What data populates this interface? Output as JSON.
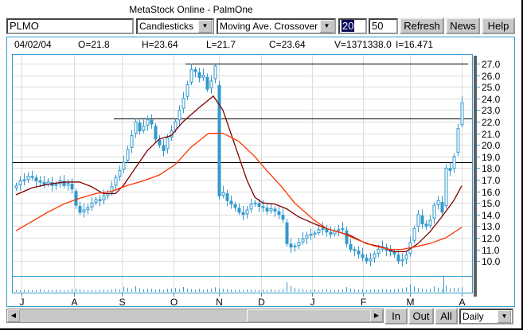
{
  "window": {
    "title": "MetaStock Online - PalmOne"
  },
  "toolbar": {
    "symbol": "PLMO",
    "chart_style": "Candlesticks",
    "indicator": "Moving Ave. Crossover",
    "period_short": "20",
    "period_long": "50",
    "refresh_label": "Refresh",
    "news_label": "News",
    "help_label": "Help"
  },
  "info": {
    "date": "04/02/04",
    "open": "O=21.8",
    "high": "H=23.64",
    "low": "L=21.7",
    "close": "C=23.64",
    "volume": "V=1371338.0",
    "indicator": "I=16.471"
  },
  "bottom": {
    "zoom_in_label": "In",
    "zoom_out_label": "Out",
    "all_label": "All",
    "periodicity": "Daily"
  },
  "colors": {
    "candle": "#3399cc",
    "ma_short": "#800000",
    "ma_long": "#ff3300",
    "trendline": "#000000",
    "grid": "#dddddd",
    "border": "#3399cc"
  },
  "chart_data": {
    "type": "candlestick",
    "y_axis": {
      "min": 10.0,
      "max": 27.0,
      "step": 1.0,
      "side": "right",
      "tick_labels": [
        "27.0",
        "26.0",
        "25.0",
        "24.0",
        "23.0",
        "22.0",
        "21.0",
        "20.0",
        "19.0",
        "18.0",
        "17.0",
        "16.0",
        "15.0",
        "14.0",
        "13.0",
        "12.0",
        "11.0",
        "10.0"
      ]
    },
    "x_ticks": [
      {
        "label": "J",
        "index": 1.4
      },
      {
        "label": "A",
        "index": 14.6
      },
      {
        "label": "S",
        "index": 26.6
      },
      {
        "label": "O",
        "index": 39.6
      },
      {
        "label": "N",
        "index": 51
      },
      {
        "label": "D",
        "index": 61.6
      },
      {
        "label": "J",
        "index": 74.4
      },
      {
        "label": "F",
        "index": 87.2
      },
      {
        "label": "M",
        "index": 99
      },
      {
        "label": "A",
        "index": 112
      }
    ],
    "grid": true,
    "close": [
      16.5,
      16.9,
      17.0,
      17.3,
      17.2,
      16.9,
      16.8,
      16.6,
      16.8,
      16.5,
      16.6,
      16.9,
      16.5,
      16.7,
      16.2,
      14.8,
      14.2,
      14.4,
      14.6,
      15.0,
      15.3,
      15.2,
      15.6,
      15.8,
      16.4,
      17.2,
      17.8,
      18.5,
      19.6,
      20.8,
      22.0,
      21.2,
      21.6,
      22.2,
      21.8,
      20.5,
      20.0,
      19.5,
      20.6,
      21.2,
      22.0,
      23.0,
      24.0,
      25.2,
      26.5,
      26.3,
      25.8,
      26.0,
      24.8,
      25.5,
      26.8,
      15.6,
      15.9,
      15.2,
      14.9,
      14.6,
      14.2,
      14.0,
      14.4,
      14.9,
      15.0,
      14.7,
      14.6,
      14.3,
      14.5,
      14.3,
      14.0,
      13.6,
      11.5,
      11.2,
      11.3,
      11.6,
      11.9,
      12.2,
      12.3,
      12.4,
      12.7,
      12.8,
      12.5,
      12.3,
      12.6,
      12.7,
      12.8,
      11.5,
      11.0,
      10.9,
      10.6,
      10.3,
      10.0,
      10.2,
      10.6,
      11.0,
      11.2,
      10.9,
      10.8,
      10.6,
      10.0,
      10.1,
      10.5,
      11.6,
      12.8,
      14.0,
      13.2,
      13.0,
      13.5,
      14.8,
      15.2,
      14.2,
      18.0,
      17.8,
      19.0,
      21.4,
      23.64
    ],
    "ma_short": [
      [
        0,
        15.7
      ],
      [
        4,
        16.3
      ],
      [
        8,
        16.6
      ],
      [
        12,
        16.8
      ],
      [
        16,
        16.8
      ],
      [
        19,
        16.4
      ],
      [
        22,
        15.8
      ],
      [
        25,
        15.8
      ],
      [
        27,
        16.5
      ],
      [
        30,
        18.0
      ],
      [
        33,
        19.5
      ],
      [
        36,
        20.5
      ],
      [
        39,
        20.8
      ],
      [
        42,
        22.0
      ],
      [
        46,
        23.2
      ],
      [
        49.6,
        24.2
      ],
      [
        52,
        23.0
      ],
      [
        55,
        20.0
      ],
      [
        58,
        17.0
      ],
      [
        60,
        15.5
      ],
      [
        62,
        15.0
      ],
      [
        65,
        14.9
      ],
      [
        68,
        14.5
      ],
      [
        71,
        13.8
      ],
      [
        75,
        13.2
      ],
      [
        78,
        12.8
      ],
      [
        81,
        12.5
      ],
      [
        84,
        12.2
      ],
      [
        88,
        11.5
      ],
      [
        92,
        11.2
      ],
      [
        95,
        10.8
      ],
      [
        98,
        10.8
      ],
      [
        101,
        11.5
      ],
      [
        104,
        12.5
      ],
      [
        107,
        13.8
      ],
      [
        110,
        15.2
      ],
      [
        112,
        16.471
      ]
    ],
    "ma_long": [
      [
        0,
        12.6
      ],
      [
        4,
        13.4
      ],
      [
        8,
        14.2
      ],
      [
        12,
        14.9
      ],
      [
        16,
        15.4
      ],
      [
        20,
        15.8
      ],
      [
        24,
        16.0
      ],
      [
        28,
        16.5
      ],
      [
        32,
        16.9
      ],
      [
        36,
        17.4
      ],
      [
        40,
        18.3
      ],
      [
        44,
        19.8
      ],
      [
        48.4,
        21.0
      ],
      [
        52,
        21.0
      ],
      [
        56,
        20.3
      ],
      [
        60,
        19.0
      ],
      [
        63,
        17.8
      ],
      [
        67,
        16.3
      ],
      [
        70,
        15.0
      ],
      [
        75,
        13.5
      ],
      [
        78,
        12.8
      ],
      [
        82,
        12.4
      ],
      [
        86,
        11.8
      ],
      [
        90,
        11.3
      ],
      [
        94,
        11.0
      ],
      [
        97,
        11.0
      ],
      [
        100,
        11.2
      ],
      [
        104,
        11.5
      ],
      [
        108,
        12.0
      ],
      [
        112,
        12.9
      ]
    ],
    "trendlines": [
      {
        "price": 27.0,
        "from_index": 42.6,
        "to_index": 113.6
      },
      {
        "price": 22.3,
        "from_index": 24.6,
        "to_index": 114.6
      },
      {
        "price": 18.5,
        "from_index": -1,
        "to_index": 114.6
      }
    ],
    "volume": [
      0.6,
      0.5,
      0.7,
      0.6,
      0.5,
      0.6,
      0.8,
      0.5,
      0.6,
      0.5,
      0.7,
      0.6,
      0.5,
      0.6,
      0.9,
      1.0,
      0.8,
      0.6,
      0.5,
      0.6,
      0.5,
      0.6,
      0.7,
      0.6,
      0.8,
      0.9,
      0.7,
      1.6,
      1.2,
      0.9,
      1.8,
      1.1,
      0.8,
      1.0,
      0.9,
      0.7,
      0.8,
      0.6,
      0.9,
      1.0,
      1.2,
      0.9,
      1.5,
      1.0,
      0.8,
      0.7,
      0.9,
      0.6,
      0.8,
      1.0,
      1.4,
      1.1,
      0.9,
      0.8,
      0.7,
      0.6,
      0.7,
      0.6,
      0.8,
      0.7,
      0.6,
      0.6,
      0.7,
      0.6,
      0.8,
      0.6,
      0.7,
      0.9,
      3.0,
      1.8,
      1.2,
      0.9,
      0.8,
      0.7,
      0.7,
      0.8,
      0.6,
      0.7,
      0.9,
      0.7,
      0.6,
      0.7,
      0.8,
      1.5,
      0.9,
      0.8,
      0.7,
      0.8,
      0.6,
      0.7,
      0.8,
      0.7,
      0.9,
      0.8,
      0.7,
      0.8,
      0.9,
      1.0,
      1.4,
      2.3,
      1.6,
      1.2,
      0.9,
      0.8,
      1.0,
      1.7,
      1.3,
      0.9,
      2.0,
      1.1,
      1.3,
      1.2,
      1.4
    ]
  }
}
